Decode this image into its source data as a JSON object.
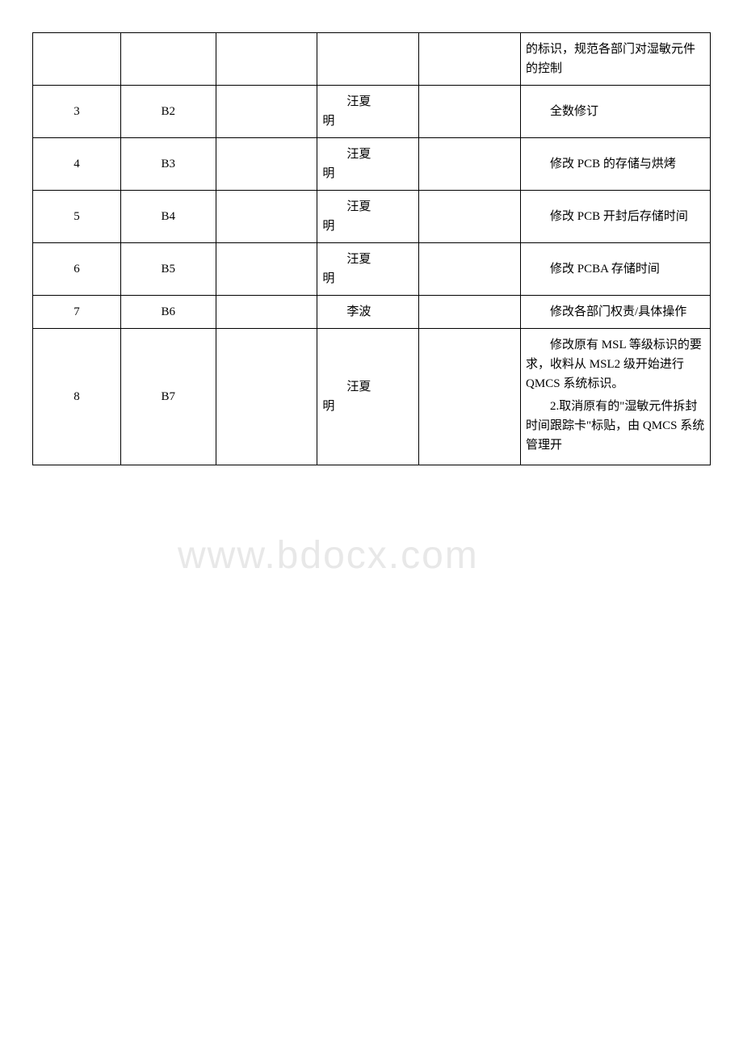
{
  "watermark_text": "www.bdocx.com",
  "table": {
    "rows": [
      {
        "num": "",
        "ver": "",
        "c3": "",
        "person_l1": "",
        "person_l2": "",
        "c5": "",
        "desc": "的标识，规范各部门对湿敏元件的控制"
      },
      {
        "num": "3",
        "ver": "B2",
        "c3": "",
        "person_l1": "汪夏",
        "person_l2": "明",
        "c5": "",
        "desc": "全数修订",
        "desc_indent": true
      },
      {
        "num": "4",
        "ver": "B3",
        "c3": "",
        "person_l1": "汪夏",
        "person_l2": "明",
        "c5": "",
        "desc": "修改 PCB 的存储与烘烤",
        "desc_indent": true
      },
      {
        "num": "5",
        "ver": "B4",
        "c3": "",
        "person_l1": "汪夏",
        "person_l2": "明",
        "c5": "",
        "desc": "修改 PCB 开封后存储时间",
        "desc_indent": true
      },
      {
        "num": "6",
        "ver": "B5",
        "c3": "",
        "person_l1": "汪夏",
        "person_l2": "明",
        "c5": "",
        "desc": "修改 PCBA 存储时间",
        "desc_indent": true
      },
      {
        "num": "7",
        "ver": "B6",
        "c3": "",
        "person_l1": "李波",
        "person_l2": "",
        "c5": "",
        "desc": "修改各部门权责/具体操作",
        "desc_indent": true
      },
      {
        "num": "8",
        "ver": "B7",
        "c3": "",
        "person_l1": "汪夏",
        "person_l2": "明",
        "c5": "",
        "desc_p1": "修改原有 MSL 等级标识的要求，收料从 MSL2 级开始进行 QMCS 系统标识。",
        "desc_p2": "2.取消原有的\"湿敏元件拆封时间跟踪卡\"标贴，由 QMCS 系统管理开",
        "multi": true
      }
    ]
  },
  "styling": {
    "border_color": "#000000",
    "text_color": "#000000",
    "background_color": "#ffffff",
    "watermark_color": "#e8e8e8",
    "font_size": 15,
    "watermark_font_size": 48,
    "col_widths_pct": [
      13,
      14,
      15,
      15,
      15,
      28
    ]
  }
}
